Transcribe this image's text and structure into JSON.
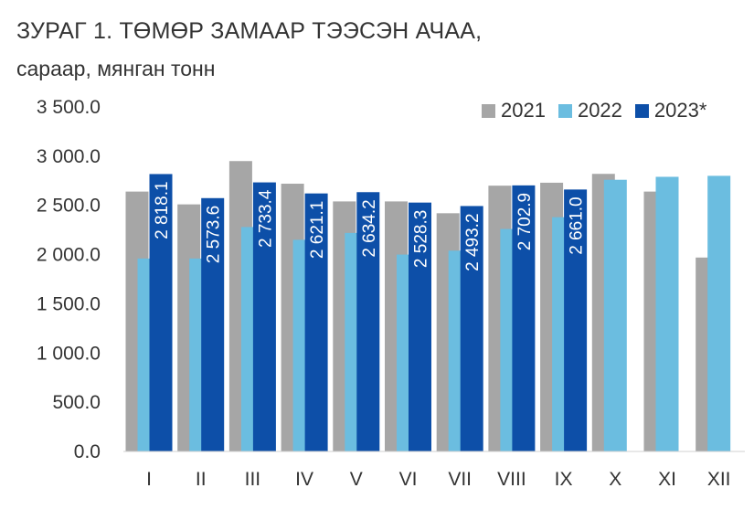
{
  "chart_data": {
    "type": "bar",
    "title": "ЗУРАГ 1.    ТӨМӨР ЗАМААР ТЭЭСЭН АЧАА,",
    "subtitle": "сараар, мянган тонн",
    "categories": [
      "I",
      "II",
      "III",
      "IV",
      "V",
      "VI",
      "VII",
      "VIII",
      "IX",
      "X",
      "XI",
      "XII"
    ],
    "y_ticks": [
      "0.0",
      "500.0",
      "1 000.0",
      "1 500.0",
      "2 000.0",
      "2 500.0",
      "3 000.0",
      "3 500.0"
    ],
    "ylim": [
      0,
      3500
    ],
    "legend_position": "top-right",
    "grid": false,
    "series": [
      {
        "name": "2021",
        "color": "#A6A6A6",
        "values": [
          2640,
          2510,
          2950,
          2720,
          2540,
          2540,
          2420,
          2700,
          2730,
          2820,
          2640,
          1970
        ]
      },
      {
        "name": "2022",
        "color": "#6BBDE0",
        "values": [
          1960,
          1960,
          2280,
          2150,
          2220,
          2000,
          2040,
          2260,
          2380,
          2760,
          2790,
          2800
        ]
      },
      {
        "name": "2023*",
        "color": "#0D4FA8",
        "values": [
          2818.1,
          2573.6,
          2733.4,
          2621.1,
          2634.2,
          2528.3,
          2493.2,
          2702.9,
          2661.0,
          null,
          null,
          null
        ],
        "labels": [
          "2 818.1",
          "2 573.6",
          "2 733.4",
          "2 621.1",
          "2 634.2",
          "2 528.3",
          "2 493.2",
          "2 702.9",
          "2 661.0",
          null,
          null,
          null
        ]
      }
    ]
  }
}
